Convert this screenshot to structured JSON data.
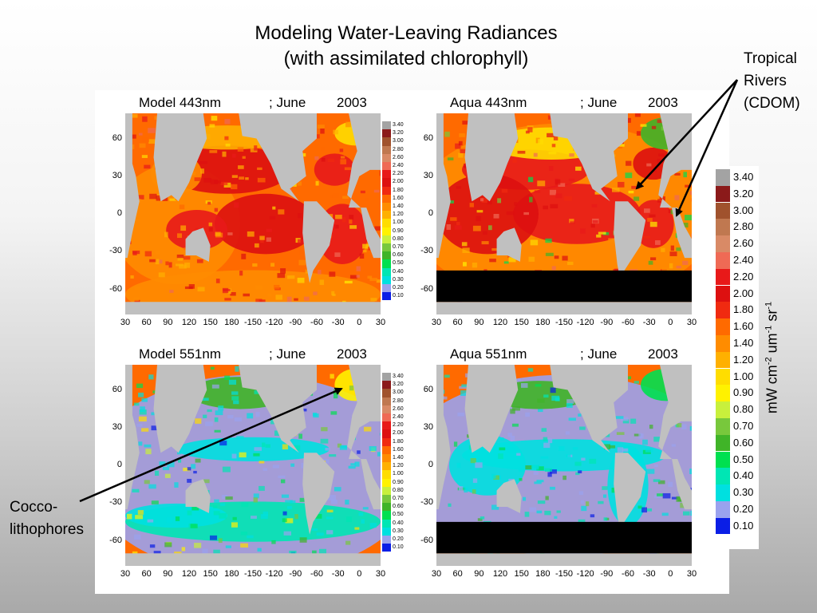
{
  "slide": {
    "title_line1": "Modeling Water-Leaving Radiances",
    "title_line2": "(with assimilated chlorophyll)"
  },
  "panels": [
    {
      "id": "model443",
      "source": "Model 443nm",
      "sep": "; June",
      "year": "2003",
      "variant": "model443"
    },
    {
      "id": "aqua443",
      "source": "Aqua 443nm",
      "sep": "; June",
      "year": "2003",
      "variant": "aqua443"
    },
    {
      "id": "model551",
      "source": "Model 551nm",
      "sep": "; June",
      "year": "2003",
      "variant": "model551"
    },
    {
      "id": "aqua551",
      "source": "Aqua 551nm",
      "sep": "; June",
      "year": "2003",
      "variant": "aqua551"
    }
  ],
  "axes": {
    "y_ticks": [
      "60",
      "30",
      "0",
      "-30",
      "-60"
    ],
    "x_ticks": [
      "30",
      "60",
      "90",
      "120",
      "150",
      "180",
      "-150",
      "-120",
      "-90",
      "-60",
      "-30",
      "0",
      "30"
    ]
  },
  "colorbar": {
    "levels": [
      "3.40",
      "3.20",
      "3.00",
      "2.80",
      "2.60",
      "2.40",
      "2.20",
      "2.00",
      "1.80",
      "1.60",
      "1.40",
      "1.20",
      "1.00",
      "0.90",
      "0.80",
      "0.70",
      "0.60",
      "0.50",
      "0.40",
      "0.30",
      "0.20",
      "0.10"
    ],
    "colors": [
      "#a3a3a3",
      "#8b1a1a",
      "#a0522d",
      "#c07850",
      "#d98a66",
      "#ef6a55",
      "#e81919",
      "#dd1010",
      "#f02a10",
      "#ff6a00",
      "#ff8c00",
      "#ffb000",
      "#ffdd00",
      "#fff200",
      "#c8f03c",
      "#78c83c",
      "#40b428",
      "#00e050",
      "#00e6b4",
      "#00e0e0",
      "#9aa2ee",
      "#0a1ee6"
    ],
    "units_text": "mW cm",
    "units_sup1": "-2",
    "units_mid": " um",
    "units_sup2": "-1",
    "units_end": " sr",
    "units_sup3": "-1"
  },
  "annotations": {
    "tropical": [
      "Tropical",
      "Rivers",
      "(CDOM)"
    ],
    "cocco": [
      "Cocco-",
      "lithophores"
    ]
  },
  "colors": {
    "land": "#c0c0c0",
    "nodata": "#000000",
    "arrow": "#000000"
  }
}
